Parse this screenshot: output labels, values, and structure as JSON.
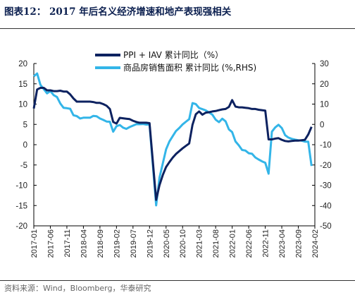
{
  "header": {
    "title": "图表12： 2017 年后名义经济增速和地产表现强相关"
  },
  "footer": {
    "source": "资料来源：Wind，Bloomberg，华泰研究"
  },
  "colors": {
    "ppi_iav": "#0d2260",
    "housing": "#33b5e8"
  },
  "chart_data": {
    "type": "line",
    "title": "",
    "xlabel": "",
    "ylabel": "",
    "x": [
      "2017-01",
      "2017-06",
      "2017-11",
      "2018-04",
      "2018-09",
      "2019-02",
      "2019-07",
      "2019-12",
      "2020-05",
      "2020-10",
      "2021-03",
      "2021-08",
      "2022-01",
      "2022-06",
      "2022-11",
      "2023-04",
      "2023-09",
      "2024-02"
    ],
    "x_tick_labels": [
      "2017-01",
      "2017-06",
      "2017-11",
      "2018-04",
      "2018-09",
      "2019-02",
      "2019-07",
      "2019-12",
      "2020-05",
      "2020-10",
      "2021-03",
      "2021-08",
      "2022-01",
      "2022-06",
      "2022-11",
      "2023-04",
      "2023-09",
      "2024-02"
    ],
    "y_left": {
      "ylim": [
        -20,
        20
      ],
      "ticks": [
        "20",
        "15",
        "10",
        "5",
        "0",
        "-5",
        "-10",
        "-15",
        "-20"
      ]
    },
    "y_right": {
      "ylim": [
        -50,
        30
      ],
      "ticks": [
        "30",
        "20",
        "10",
        "0",
        "-10",
        "-20",
        "-30",
        "-40",
        "-50"
      ]
    },
    "legend_position": "top-center",
    "series": [
      {
        "name": "PPI + IAV 累计同比（%）",
        "axis": "left",
        "points": [
          [
            "2017-01",
            8.9
          ],
          [
            "2017-02",
            13.6
          ],
          [
            "2017-03",
            14.0
          ],
          [
            "2017-04",
            14.0
          ],
          [
            "2017-05",
            13.4
          ],
          [
            "2017-06",
            13.4
          ],
          [
            "2017-07",
            13.2
          ],
          [
            "2017-08",
            13.2
          ],
          [
            "2017-09",
            13.3
          ],
          [
            "2017-10",
            13.1
          ],
          [
            "2017-11",
            13.1
          ],
          [
            "2017-12",
            12.4
          ],
          [
            "2018-01",
            11.4
          ],
          [
            "2018-02",
            10.6
          ],
          [
            "2018-03",
            10.6
          ],
          [
            "2018-04",
            10.6
          ],
          [
            "2018-05",
            10.6
          ],
          [
            "2018-06",
            10.6
          ],
          [
            "2018-07",
            10.5
          ],
          [
            "2018-08",
            10.3
          ],
          [
            "2018-09",
            10.3
          ],
          [
            "2018-10",
            10.0
          ],
          [
            "2018-11",
            9.6
          ],
          [
            "2018-12",
            8.8
          ],
          [
            "2019-01",
            5.6
          ],
          [
            "2019-02",
            5.2
          ],
          [
            "2019-03",
            6.6
          ],
          [
            "2019-04",
            6.5
          ],
          [
            "2019-05",
            6.4
          ],
          [
            "2019-06",
            6.3
          ],
          [
            "2019-07",
            5.9
          ],
          [
            "2019-08",
            5.6
          ],
          [
            "2019-09",
            5.4
          ],
          [
            "2019-10",
            5.4
          ],
          [
            "2019-11",
            5.4
          ],
          [
            "2019-12",
            5.3
          ],
          [
            "2020-02",
            -13.6
          ],
          [
            "2020-03",
            -10.0
          ],
          [
            "2020-04",
            -7.5
          ],
          [
            "2020-05",
            -5.5
          ],
          [
            "2020-06",
            -4.3
          ],
          [
            "2020-07",
            -3.2
          ],
          [
            "2020-08",
            -2.3
          ],
          [
            "2020-09",
            -1.6
          ],
          [
            "2020-10",
            -0.9
          ],
          [
            "2020-11",
            -0.3
          ],
          [
            "2020-12",
            0.3
          ],
          [
            "2021-01",
            4.9
          ],
          [
            "2021-02",
            7.5
          ],
          [
            "2021-03",
            8.2
          ],
          [
            "2021-04",
            7.4
          ],
          [
            "2021-05",
            7.9
          ],
          [
            "2021-06",
            8.0
          ],
          [
            "2021-07",
            8.2
          ],
          [
            "2021-08",
            8.3
          ],
          [
            "2021-09",
            8.5
          ],
          [
            "2021-10",
            8.7
          ],
          [
            "2021-11",
            8.8
          ],
          [
            "2021-12",
            9.3
          ],
          [
            "2022-01",
            11.0
          ],
          [
            "2022-02",
            9.4
          ],
          [
            "2022-03",
            9.2
          ],
          [
            "2022-04",
            9.2
          ],
          [
            "2022-05",
            9.1
          ],
          [
            "2022-06",
            9.0
          ],
          [
            "2022-07",
            8.8
          ],
          [
            "2022-08",
            8.8
          ],
          [
            "2022-09",
            8.6
          ],
          [
            "2022-10",
            8.5
          ],
          [
            "2022-11",
            8.4
          ],
          [
            "2022-12",
            1.3
          ],
          [
            "2023-01",
            1.3
          ],
          [
            "2023-02",
            1.5
          ],
          [
            "2023-03",
            1.6
          ],
          [
            "2023-04",
            1.2
          ],
          [
            "2023-05",
            0.9
          ],
          [
            "2023-06",
            0.8
          ],
          [
            "2023-07",
            0.9
          ],
          [
            "2023-08",
            1.0
          ],
          [
            "2023-09",
            1.0
          ],
          [
            "2023-10",
            1.1
          ],
          [
            "2023-11",
            1.2
          ],
          [
            "2023-12",
            2.5
          ],
          [
            "2024-01",
            4.4
          ]
        ]
      },
      {
        "name": "商品房销售面积 累计同比 (%,RHS)",
        "axis": "right",
        "points": [
          [
            "2017-01",
            23.7
          ],
          [
            "2017-02",
            25.1
          ],
          [
            "2017-03",
            19.5
          ],
          [
            "2017-04",
            17.4
          ],
          [
            "2017-05",
            15.3
          ],
          [
            "2017-06",
            16.4
          ],
          [
            "2017-07",
            14.4
          ],
          [
            "2017-08",
            13.5
          ],
          [
            "2017-09",
            10.3
          ],
          [
            "2017-10",
            8.2
          ],
          [
            "2017-11",
            8.0
          ],
          [
            "2017-12",
            7.7
          ],
          [
            "2018-01",
            4.5
          ],
          [
            "2018-02",
            4.1
          ],
          [
            "2018-03",
            2.9
          ],
          [
            "2018-04",
            3.3
          ],
          [
            "2018-05",
            3.3
          ],
          [
            "2018-06",
            3.3
          ],
          [
            "2018-07",
            4.2
          ],
          [
            "2018-08",
            4.0
          ],
          [
            "2018-09",
            2.9
          ],
          [
            "2018-10",
            2.2
          ],
          [
            "2018-11",
            1.4
          ],
          [
            "2018-12",
            1.3
          ],
          [
            "2019-01",
            -3.6
          ],
          [
            "2019-02",
            -0.9
          ],
          [
            "2019-03",
            -0.3
          ],
          [
            "2019-04",
            -1.6
          ],
          [
            "2019-05",
            -2.2
          ],
          [
            "2019-06",
            -1.3
          ],
          [
            "2019-07",
            -0.6
          ],
          [
            "2019-08",
            0.1
          ],
          [
            "2019-09",
            0.1
          ],
          [
            "2019-10",
            0.2
          ],
          [
            "2019-11",
            -0.1
          ],
          [
            "2019-12",
            -0.1
          ],
          [
            "2020-02",
            -39.9
          ],
          [
            "2020-03",
            -26.3
          ],
          [
            "2020-04",
            -19.3
          ],
          [
            "2020-05",
            -12.3
          ],
          [
            "2020-06",
            -8.4
          ],
          [
            "2020-07",
            -5.8
          ],
          [
            "2020-08",
            -3.3
          ],
          [
            "2020-09",
            -1.8
          ],
          [
            "2020-10",
            0.0
          ],
          [
            "2020-11",
            1.3
          ],
          [
            "2020-12",
            2.6
          ],
          [
            "2021-01",
            10.5
          ],
          [
            "2021-02",
            10.0
          ],
          [
            "2021-03",
            8.1
          ],
          [
            "2021-04",
            7.5
          ],
          [
            "2021-05",
            6.9
          ],
          [
            "2021-06",
            5.9
          ],
          [
            "2021-07",
            4.8
          ],
          [
            "2021-08",
            2.3
          ],
          [
            "2021-09",
            1.1
          ],
          [
            "2021-10",
            2.8
          ],
          [
            "2021-11",
            1.5
          ],
          [
            "2021-12",
            -2.5
          ],
          [
            "2022-01",
            -3.8
          ],
          [
            "2022-02",
            -8.4
          ],
          [
            "2022-03",
            -10.3
          ],
          [
            "2022-04",
            -12.6
          ],
          [
            "2022-05",
            -12.9
          ],
          [
            "2022-06",
            -14.2
          ],
          [
            "2022-07",
            -14.5
          ],
          [
            "2022-08",
            -16.3
          ],
          [
            "2022-09",
            -17.3
          ],
          [
            "2022-10",
            -18.2
          ],
          [
            "2022-11",
            -18.9
          ],
          [
            "2022-12",
            -24.3
          ],
          [
            "2023-01",
            -3.6
          ],
          [
            "2023-02",
            -1.5
          ],
          [
            "2023-03",
            -0.2
          ],
          [
            "2023-04",
            -1.8
          ],
          [
            "2023-05",
            -5.3
          ],
          [
            "2023-06",
            -6.5
          ],
          [
            "2023-07",
            -7.1
          ],
          [
            "2023-08",
            -7.5
          ],
          [
            "2023-09",
            -7.8
          ],
          [
            "2023-10",
            -8.0
          ],
          [
            "2023-11",
            -8.5
          ],
          [
            "2023-12",
            -8.5
          ],
          [
            "2024-01",
            -20.5
          ]
        ]
      }
    ]
  }
}
